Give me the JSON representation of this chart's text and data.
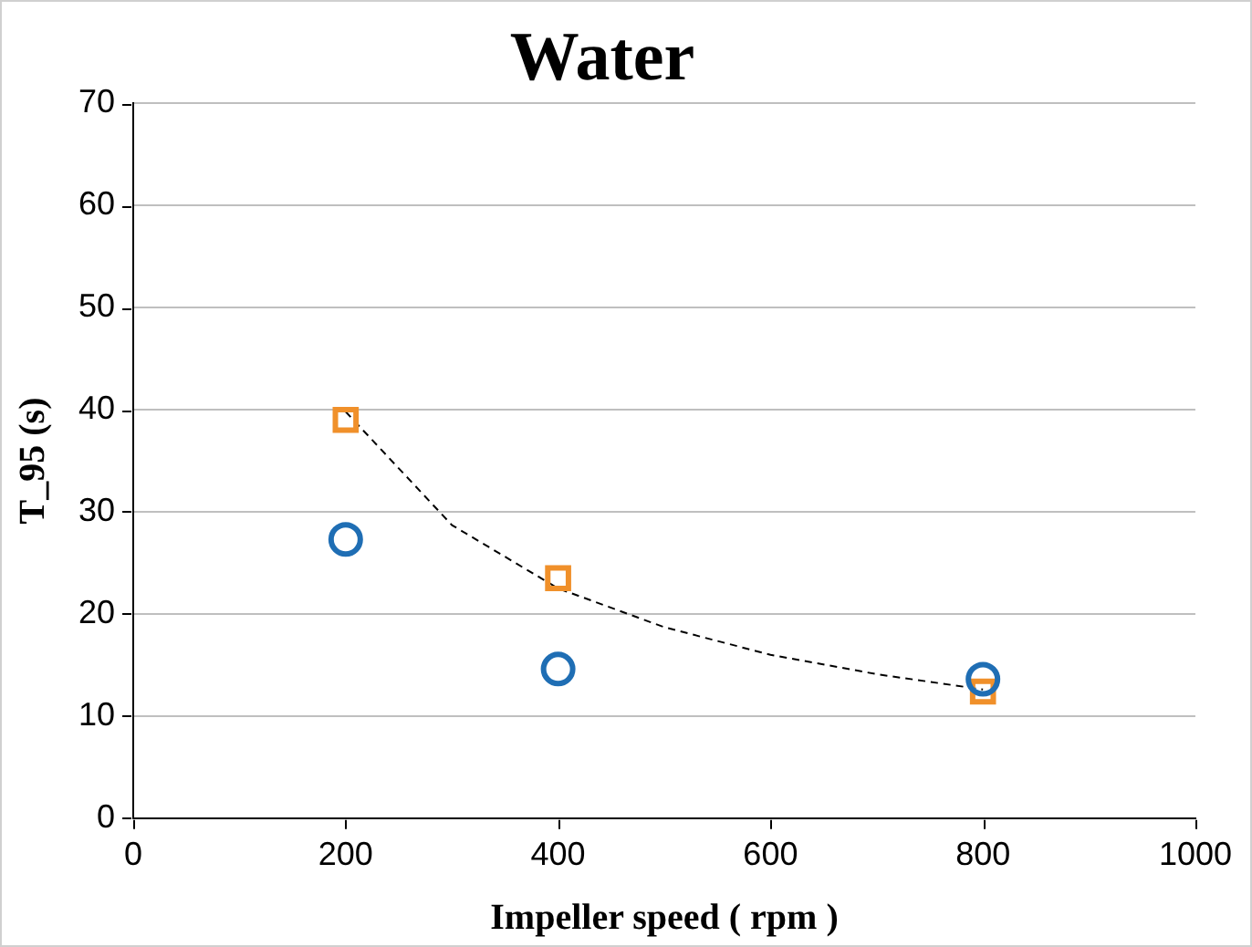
{
  "chart_data": {
    "type": "scatter",
    "title": "Water",
    "xlabel": "Impeller speed ( rpm )",
    "ylabel": "T_95 (s)",
    "x": [
      200,
      400,
      800
    ],
    "series": [
      {
        "type": "scatter",
        "marker": "circle",
        "color": "#1f6eb4",
        "values": [
          27.3,
          14.6,
          13.6
        ]
      },
      {
        "type": "scatter",
        "marker": "square",
        "color": "#f0902a",
        "values": [
          39.0,
          23.5,
          12.4
        ]
      },
      {
        "type": "line",
        "marker": "none",
        "line_style": "dashed",
        "color": "#000000",
        "x": [
          200,
          300,
          400,
          500,
          600,
          700,
          800
        ],
        "values": [
          39.8,
          28.7,
          22.5,
          18.7,
          16.0,
          14.1,
          12.6
        ]
      }
    ],
    "xlim": [
      0,
      1000
    ],
    "xticks": [
      0,
      200,
      400,
      600,
      800,
      1000
    ],
    "ylim": [
      0,
      70
    ],
    "yticks": [
      0,
      10,
      20,
      30,
      40,
      50,
      60,
      70
    ],
    "grid": "y"
  }
}
